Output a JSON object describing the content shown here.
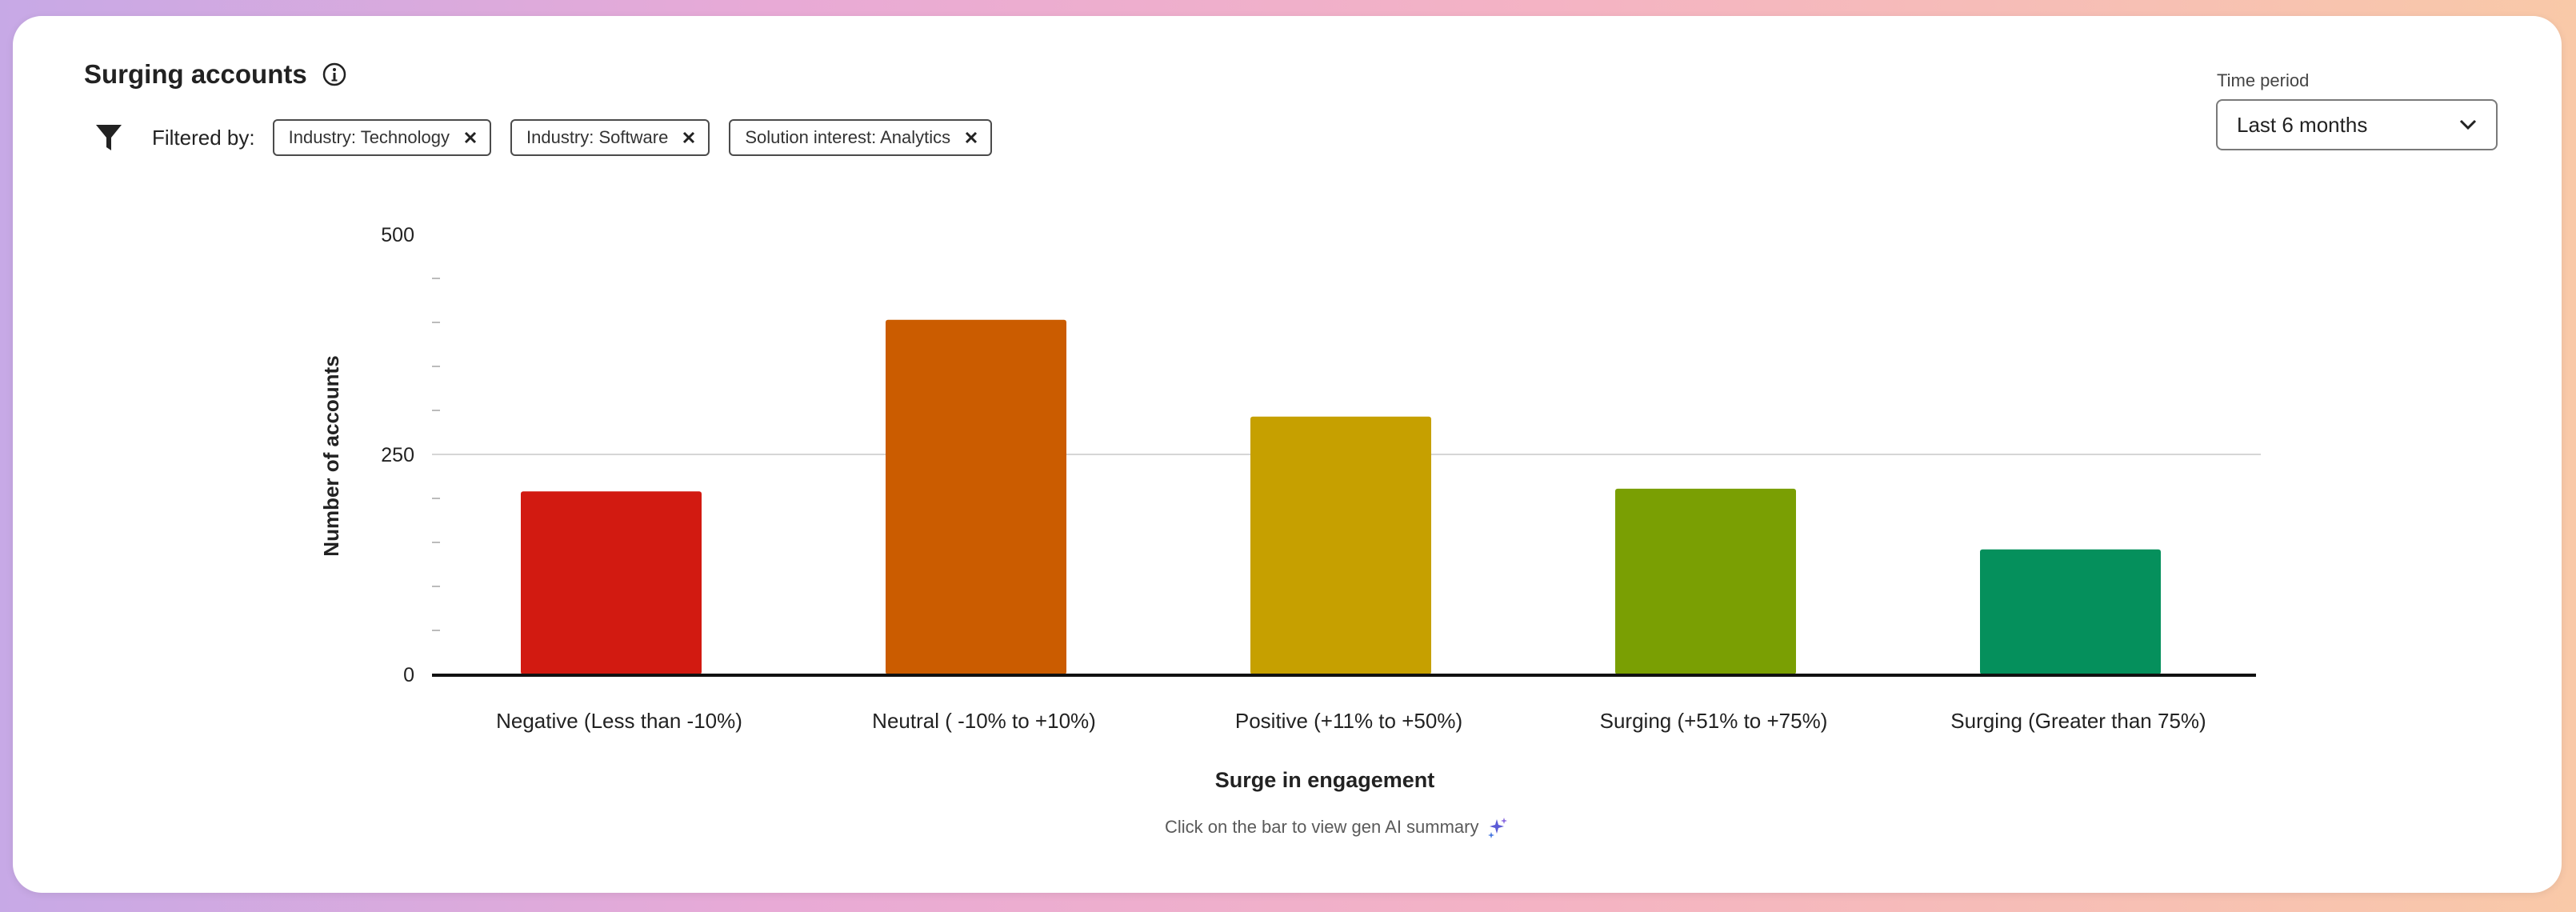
{
  "header": {
    "title": "Surging accounts",
    "info_icon": "info-icon"
  },
  "filters": {
    "label": "Filtered by:",
    "chips": [
      {
        "label": "Industry: Technology"
      },
      {
        "label": "Industry: Software"
      },
      {
        "label": "Solution interest: Analytics"
      }
    ]
  },
  "time_period": {
    "label": "Time period",
    "value": "Last 6 months"
  },
  "colors": {
    "negative": "#d21a11",
    "neutral": "#cb5c00",
    "positive": "#c6a000",
    "surging_mid": "#7a9f03",
    "surging_high": "#05905c"
  },
  "chart_data": {
    "type": "bar",
    "categories": [
      "Negative (Less than -10%)",
      "Neutral ( -10% to +10%)",
      "Positive (+11% to +50%)",
      "Surging (+51% to +75%)",
      "Surging (Greater than 75%)"
    ],
    "values": [
      208,
      403,
      293,
      211,
      142
    ],
    "bar_colors": [
      "#d21a11",
      "#cb5c00",
      "#c6a000",
      "#7a9f03",
      "#05905c"
    ],
    "xlabel": "Surge in engagement",
    "ylabel": "Number of accounts",
    "ylim": [
      0,
      500
    ],
    "yticks": [
      "0",
      "250",
      "500"
    ],
    "grid": true
  },
  "footer": {
    "hint": "Click on the bar to view gen AI summary",
    "icon": "sparkle-icon"
  }
}
